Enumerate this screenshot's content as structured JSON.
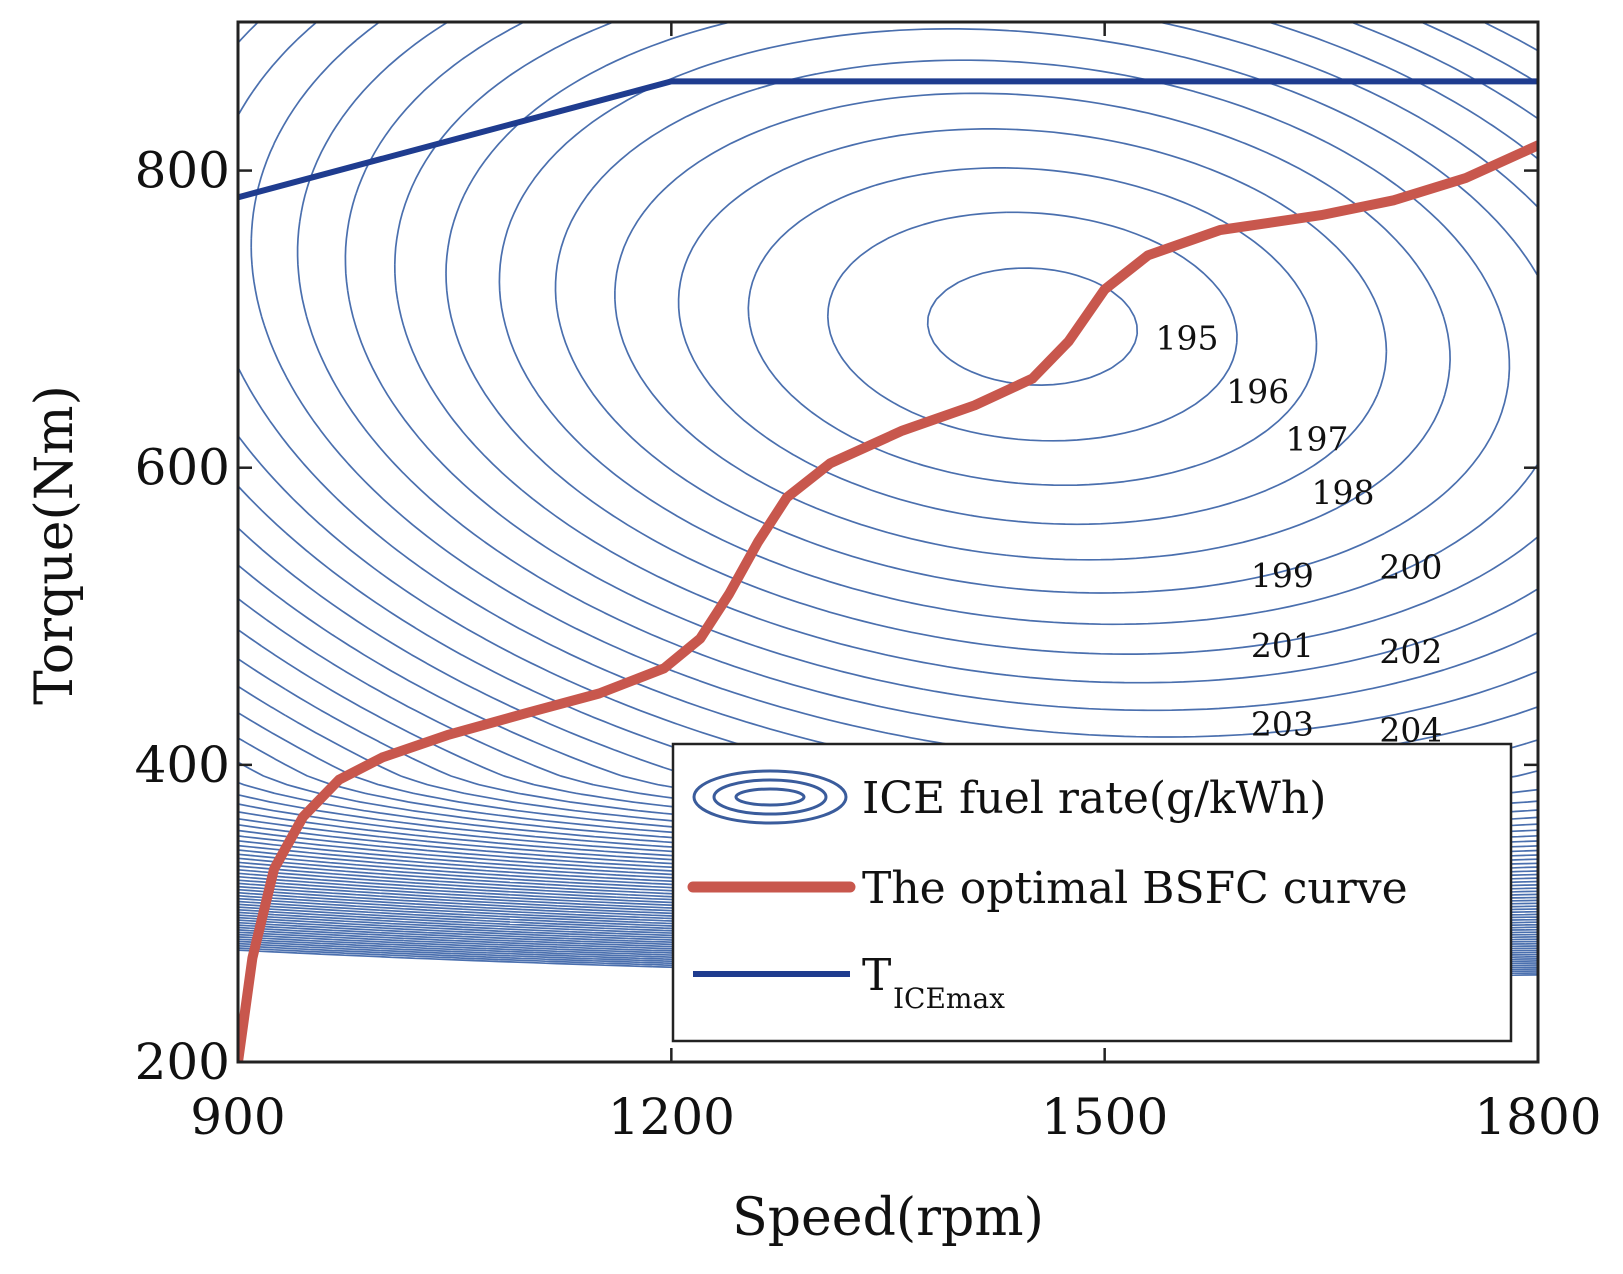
{
  "chart_data": {
    "type": "contour",
    "xlabel": "Speed(rpm)",
    "ylabel": "Torque(Nm)",
    "xlim": [
      900,
      1800
    ],
    "ylim": [
      200,
      900
    ],
    "xticks": [
      900,
      1200,
      1500,
      1800
    ],
    "yticks": [
      200,
      400,
      600,
      800
    ],
    "colors": {
      "contour": "#4a6fae",
      "bsfc": "#c8574d",
      "tmax": "#1f3c8f",
      "axis": "#222222"
    },
    "contours": {
      "name": "ICE fuel rate(g/kWh)",
      "labeled_levels": [
        {
          "text": "195",
          "x": 1557,
          "y": 687
        },
        {
          "text": "196",
          "x": 1606,
          "y": 651
        },
        {
          "text": "197",
          "x": 1647,
          "y": 619
        },
        {
          "text": "198",
          "x": 1665,
          "y": 583
        },
        {
          "text": "199",
          "x": 1623,
          "y": 527
        },
        {
          "text": "200",
          "x": 1712,
          "y": 533
        },
        {
          "text": "201",
          "x": 1623,
          "y": 480
        },
        {
          "text": "202",
          "x": 1712,
          "y": 476
        },
        {
          "text": "203",
          "x": 1623,
          "y": 427
        },
        {
          "text": "204",
          "x": 1712,
          "y": 423
        }
      ],
      "center": {
        "x": 1450,
        "y": 695
      }
    },
    "series": [
      {
        "name": "The optimal BSFC curve",
        "x": [
          900,
          910,
          925,
          945,
          970,
          1000,
          1045,
          1100,
          1150,
          1195,
          1220,
          1240,
          1260,
          1280,
          1310,
          1360,
          1410,
          1450,
          1475,
          1500,
          1530,
          1580,
          1650,
          1700,
          1750,
          1800
        ],
        "y": [
          200,
          270,
          330,
          365,
          390,
          405,
          420,
          435,
          448,
          465,
          485,
          515,
          550,
          580,
          603,
          625,
          642,
          660,
          685,
          720,
          743,
          760,
          770,
          780,
          795,
          817
        ]
      },
      {
        "name": "T",
        "name_sub": "ICEmax",
        "x": [
          900,
          1200,
          1800
        ],
        "y": [
          782,
          860,
          860
        ]
      }
    ],
    "legend": {
      "position": "bottom-right",
      "entries": [
        {
          "label": "ICE fuel rate(g/kWh)",
          "kind": "contour"
        },
        {
          "label": "The optimal BSFC curve",
          "kind": "line"
        },
        {
          "label": "T",
          "sub": "ICEmax",
          "kind": "line"
        }
      ]
    }
  }
}
